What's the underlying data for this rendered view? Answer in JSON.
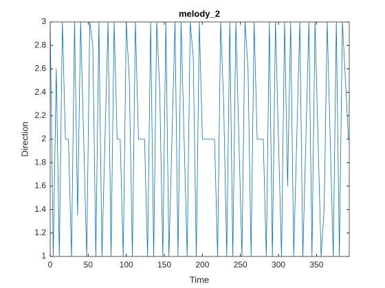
{
  "chart_data": {
    "type": "line",
    "title": "melody_2",
    "xlabel": "Time",
    "ylabel": "Direction",
    "x": [
      0,
      4,
      8,
      12,
      16,
      20,
      24,
      28,
      32,
      36,
      40,
      44,
      48,
      52,
      56,
      60,
      64,
      68,
      72,
      76,
      80,
      84,
      88,
      92,
      96,
      100,
      104,
      108,
      112,
      116,
      120,
      124,
      128,
      132,
      136,
      140,
      144,
      148,
      152,
      156,
      160,
      164,
      168,
      172,
      176,
      180,
      184,
      188,
      192,
      196,
      200,
      204,
      208,
      212,
      216,
      220,
      224,
      228,
      232,
      236,
      240,
      244,
      248,
      252,
      256,
      260,
      264,
      268,
      272,
      276,
      280,
      284,
      288,
      292,
      296,
      300,
      304,
      308,
      312,
      316,
      320,
      324,
      328,
      332,
      336,
      340,
      344,
      348,
      352,
      356,
      360,
      364,
      368,
      372,
      376,
      380,
      384,
      388,
      392
    ],
    "series": [
      {
        "name": "melody_2",
        "color": "#0072BD",
        "values": [
          3,
          1,
          2.6,
          1,
          3,
          2,
          2,
          1,
          3,
          1.35,
          3,
          2,
          1,
          3,
          2.8,
          1,
          3,
          1,
          2,
          3,
          1,
          3,
          2,
          2,
          1,
          3,
          2.5,
          1,
          3,
          2,
          2,
          2,
          1,
          3,
          1,
          3,
          2.4,
          1,
          3,
          1,
          2,
          3,
          1,
          3,
          2,
          1,
          3,
          2.7,
          1,
          3,
          2,
          2,
          2,
          2,
          2,
          1,
          3,
          2.3,
          1,
          3,
          1,
          3,
          2,
          1,
          3,
          2.6,
          1,
          3,
          2,
          2,
          2,
          1,
          3,
          1,
          3,
          2,
          1,
          3,
          1.6,
          3,
          1,
          2,
          3,
          1,
          2,
          3,
          1,
          3,
          2,
          1,
          1.4,
          3,
          2,
          1,
          3,
          1,
          3,
          2.5,
          2
        ]
      }
    ],
    "xlim": [
      0,
      393
    ],
    "xticks": [
      0,
      50,
      100,
      150,
      200,
      250,
      300,
      350
    ],
    "ylim": [
      1,
      3
    ],
    "yticks": [
      1,
      1.2,
      1.4,
      1.6,
      1.8,
      2,
      2.2,
      2.4,
      2.6,
      2.8,
      3
    ]
  }
}
